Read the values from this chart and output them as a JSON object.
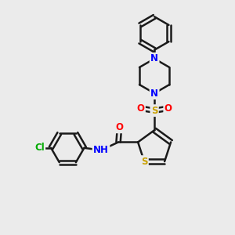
{
  "bg_color": "#ebebeb",
  "bond_color": "#1a1a1a",
  "bond_width": 1.8,
  "atom_colors": {
    "S": "#c8a000",
    "N": "#0000ff",
    "O": "#ff0000",
    "Cl": "#00aa00",
    "C": "#1a1a1a",
    "H": "#1a1a1a"
  },
  "font_size": 8.5,
  "fig_size": [
    3.0,
    3.0
  ],
  "dpi": 100,
  "xlim": [
    0,
    10
  ],
  "ylim": [
    0,
    10
  ]
}
